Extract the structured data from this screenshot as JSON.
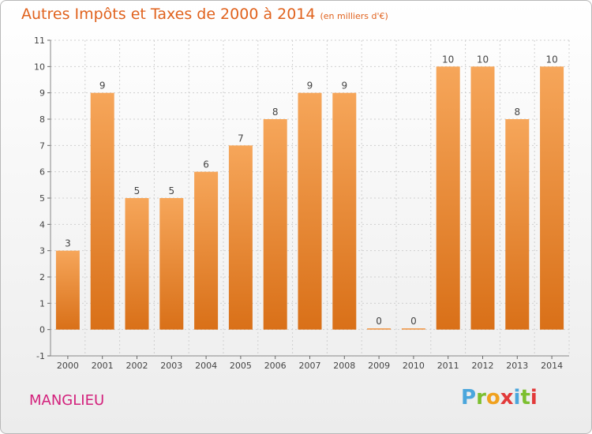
{
  "chart_data": {
    "type": "bar",
    "title": "Autres Impôts et Taxes de 2000 à 2014",
    "unit_note": "(en milliers d'€)",
    "categories": [
      "2000",
      "2001",
      "2002",
      "2003",
      "2004",
      "2005",
      "2006",
      "2007",
      "2008",
      "2009",
      "2010",
      "2011",
      "2012",
      "2013",
      "2014"
    ],
    "values": [
      3,
      9,
      5,
      5,
      6,
      7,
      8,
      9,
      9,
      0,
      0,
      10,
      10,
      8,
      10
    ],
    "yticks": [
      "-1",
      "0",
      "1",
      "2",
      "3",
      "4",
      "5",
      "6",
      "7",
      "8",
      "9",
      "10",
      "11"
    ],
    "ylim": [
      -1,
      11
    ],
    "grid": true,
    "bar_color": "#f0913c"
  },
  "place_name": "MANGLIEU",
  "logo": {
    "letters": [
      "P",
      "r",
      "o",
      "x",
      "i",
      "t",
      "i"
    ],
    "colors": [
      "#4aa6dc",
      "#7cbf2f",
      "#f0a11e",
      "#e23a3a",
      "#4aa6dc",
      "#7cbf2f",
      "#e23a3a"
    ]
  }
}
